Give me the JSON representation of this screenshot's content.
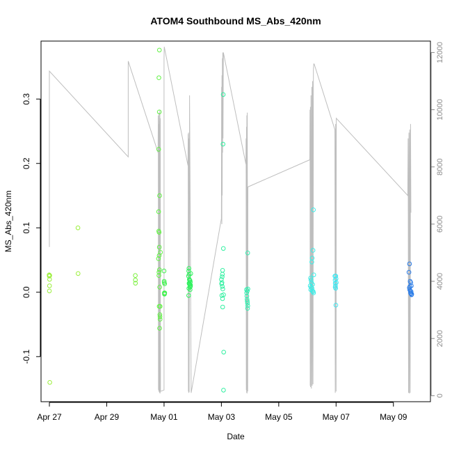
{
  "chart_data": {
    "type": "scatter",
    "title": "ATOM4 Southbound MS_Abs_420nm",
    "xlabel": "Date",
    "ylabel": "MS_Abs_420nm",
    "xlim": [
      "2016-04-26T17:00",
      "2016-05-10T07:00"
    ],
    "ylim": [
      -0.17,
      0.39
    ],
    "y2lim": [
      -210,
      12400
    ],
    "x_ticks": [
      {
        "date": "2016-04-27",
        "label": "Apr 27"
      },
      {
        "date": "2016-04-29",
        "label": "Apr 29"
      },
      {
        "date": "2016-05-01",
        "label": "May 01"
      },
      {
        "date": "2016-05-03",
        "label": "May 03"
      },
      {
        "date": "2016-05-05",
        "label": "May 05"
      },
      {
        "date": "2016-05-07",
        "label": "May 07"
      },
      {
        "date": "2016-05-09",
        "label": "May 09"
      }
    ],
    "y_ticks": [
      {
        "value": -0.1,
        "label": "-0.1"
      },
      {
        "value": 0.0,
        "label": "0.0"
      },
      {
        "value": 0.1,
        "label": "0.1"
      },
      {
        "value": 0.2,
        "label": "0.2"
      },
      {
        "value": 0.3,
        "label": "0.3"
      }
    ],
    "y2_ticks": [
      {
        "value": 0,
        "label": "0"
      },
      {
        "value": 2000,
        "label": "2000"
      },
      {
        "value": 4000,
        "label": "4000"
      },
      {
        "value": 6000,
        "label": "6000"
      },
      {
        "value": 8000,
        "label": "8000"
      },
      {
        "value": 10000,
        "label": "10000"
      },
      {
        "value": 12000,
        "label": "12000"
      }
    ],
    "grid": false,
    "legend": "none",
    "line_color": "#bebebe",
    "series": [
      {
        "color": "#9aef39",
        "points": [
          [
            "2016-04-26T23:50",
            0.027
          ],
          [
            "2016-04-26T23:55",
            0.025
          ],
          [
            "2016-04-27T00:00",
            0.002
          ],
          [
            "2016-04-27T00:05",
            0.01
          ],
          [
            "2016-04-27T00:10",
            0.02
          ],
          [
            "2016-04-27T00:15",
            0.026
          ],
          [
            "2016-04-27T00:20",
            -0.14
          ],
          [
            "2016-04-27T23:55",
            0.1
          ],
          [
            "2016-04-28T00:00",
            0.029
          ]
        ]
      },
      {
        "color": "#7df040",
        "points": [
          [
            "2016-04-29T23:55",
            0.026
          ],
          [
            "2016-04-30T00:00",
            0.019
          ],
          [
            "2016-04-30T00:05",
            0.014
          ]
        ]
      },
      {
        "color": "#62f245",
        "points": [
          [
            "2016-04-30T19:40",
            0.333
          ],
          [
            "2016-04-30T20:05",
            0.376
          ],
          [
            "2016-04-30T19:30",
            0.222
          ],
          [
            "2016-04-30T20:00",
            0.28
          ],
          [
            "2016-04-30T20:15",
            0.15
          ],
          [
            "2016-04-30T19:25",
            0.125
          ],
          [
            "2016-04-30T19:35",
            0.095
          ],
          [
            "2016-04-30T19:50",
            0.093
          ],
          [
            "2016-04-30T20:00",
            0.07
          ],
          [
            "2016-04-30T21:00",
            0.062
          ],
          [
            "2016-04-30T19:20",
            0.052
          ],
          [
            "2016-04-30T19:55",
            0.057
          ],
          [
            "2016-04-30T19:45",
            0.031
          ],
          [
            "2016-04-30T20:10",
            0.035
          ],
          [
            "2016-04-30T19:40",
            0.026
          ],
          [
            "2016-04-30T20:20",
            0.008
          ],
          [
            "2016-04-30T19:55",
            -0.022
          ],
          [
            "2016-04-30T20:45",
            -0.022
          ],
          [
            "2016-04-30T20:30",
            -0.035
          ],
          [
            "2016-04-30T20:35",
            -0.038
          ],
          [
            "2016-04-30T20:40",
            -0.042
          ],
          [
            "2016-04-30T20:15",
            -0.056
          ]
        ]
      },
      {
        "color": "#3ff24d",
        "points": [
          [
            "2016-05-01T00:00",
            0.033
          ],
          [
            "2016-05-01T00:05",
            0.017
          ],
          [
            "2016-05-01T00:10",
            0.015
          ],
          [
            "2016-05-01T00:15",
            -0.001
          ],
          [
            "2016-05-01T00:20",
            -0.003
          ],
          [
            "2016-05-01T00:25",
            -0.002
          ],
          [
            "2016-05-01T00:30",
            0.013
          ],
          [
            "2016-05-01T00:35",
            -0.001
          ]
        ]
      },
      {
        "color": "#2df25c",
        "points": [
          [
            "2016-05-01T20:30",
            0.025
          ],
          [
            "2016-05-01T20:40",
            0.033
          ],
          [
            "2016-05-01T20:50",
            0.037
          ],
          [
            "2016-05-01T21:00",
            0.028
          ],
          [
            "2016-05-01T21:10",
            0.02
          ],
          [
            "2016-05-01T21:20",
            0.019
          ],
          [
            "2016-05-01T21:30",
            0.012
          ],
          [
            "2016-05-01T21:40",
            0.008
          ],
          [
            "2016-05-01T21:50",
            0.004
          ],
          [
            "2016-05-01T22:00",
            0.016
          ],
          [
            "2016-05-01T22:10",
            0.011
          ],
          [
            "2016-05-01T22:20",
            0.029
          ],
          [
            "2016-05-01T20:35",
            -0.005
          ],
          [
            "2016-05-01T20:45",
            0.006
          ],
          [
            "2016-05-01T21:05",
            0.013
          ],
          [
            "2016-05-01T21:45",
            0.018
          ],
          [
            "2016-05-01T22:05",
            0.009
          ],
          [
            "2016-05-01T20:55",
            0.014
          ]
        ]
      },
      {
        "color": "#2ff0a0",
        "points": [
          [
            "2016-05-03T00:00",
            0.02
          ],
          [
            "2016-05-03T00:10",
            0.013
          ],
          [
            "2016-05-03T00:20",
            -0.005
          ],
          [
            "2016-05-03T01:30",
            0.307
          ],
          [
            "2016-05-03T01:20",
            0.23
          ],
          [
            "2016-05-03T01:40",
            0.068
          ],
          [
            "2016-05-03T01:00",
            0.034
          ],
          [
            "2016-05-03T00:50",
            0.028
          ],
          [
            "2016-05-03T00:40",
            0.024
          ],
          [
            "2016-05-03T00:30",
            0.015
          ],
          [
            "2016-05-03T01:10",
            0.005
          ],
          [
            "2016-05-03T01:50",
            -0.004
          ],
          [
            "2016-05-03T00:55",
            -0.01
          ],
          [
            "2016-05-03T01:05",
            -0.023
          ],
          [
            "2016-05-03T01:55",
            -0.093
          ],
          [
            "2016-05-03T01:45",
            -0.152
          ],
          [
            "2016-05-03T00:45",
            0.009
          ]
        ]
      },
      {
        "color": "#35efb1",
        "points": [
          [
            "2016-05-03T22:00",
            0.061
          ],
          [
            "2016-05-03T21:00",
            0.004
          ],
          [
            "2016-05-03T21:10",
            -0.001
          ],
          [
            "2016-05-03T21:20",
            -0.006
          ],
          [
            "2016-05-03T21:30",
            -0.011
          ],
          [
            "2016-05-03T21:40",
            -0.014
          ],
          [
            "2016-05-03T21:50",
            -0.017
          ],
          [
            "2016-05-03T22:05",
            -0.021
          ],
          [
            "2016-05-03T21:55",
            -0.025
          ],
          [
            "2016-05-03T21:45",
            0.002
          ],
          [
            "2016-05-03T22:10",
            0.005
          ]
        ]
      },
      {
        "color": "#39eee8",
        "points": [
          [
            "2016-05-06T05:00",
            0.128
          ],
          [
            "2016-05-06T04:40",
            0.065
          ],
          [
            "2016-05-06T04:00",
            0.053
          ],
          [
            "2016-05-06T03:40",
            0.047
          ],
          [
            "2016-05-06T05:20",
            0.027
          ],
          [
            "2016-05-06T02:40",
            0.022
          ],
          [
            "2016-05-06T03:00",
            0.019
          ],
          [
            "2016-05-06T03:20",
            0.015
          ],
          [
            "2016-05-06T04:20",
            0.012
          ],
          [
            "2016-05-06T02:20",
            0.01
          ],
          [
            "2016-05-06T03:50",
            0.006
          ],
          [
            "2016-05-06T02:50",
            0.004
          ],
          [
            "2016-05-06T04:50",
            0.001
          ],
          [
            "2016-05-06T05:10",
            -0.001
          ],
          [
            "2016-05-06T03:10",
            0.008
          ],
          [
            "2016-05-06T04:10",
            0.002
          ]
        ]
      },
      {
        "color": "#40e6f0",
        "points": [
          [
            "2016-05-06T23:00",
            0.025
          ],
          [
            "2016-05-06T23:10",
            0.019
          ],
          [
            "2016-05-06T23:20",
            0.014
          ],
          [
            "2016-05-06T23:30",
            0.01
          ],
          [
            "2016-05-06T23:40",
            0.006
          ],
          [
            "2016-05-06T23:50",
            -0.02
          ],
          [
            "2016-05-07T00:00",
            0.021
          ],
          [
            "2016-05-07T00:10",
            0.015
          ],
          [
            "2016-05-06T23:45",
            0.025
          ],
          [
            "2016-05-06T23:15",
            0.008
          ]
        ]
      },
      {
        "color": "#2c7de8",
        "points": [
          [
            "2016-05-09T13:00",
            0.031
          ],
          [
            "2016-05-09T13:30",
            0.044
          ],
          [
            "2016-05-09T14:00",
            0.017
          ],
          [
            "2016-05-09T14:30",
            0.015
          ],
          [
            "2016-05-09T15:00",
            0.01
          ],
          [
            "2016-05-09T13:20",
            0.007
          ],
          [
            "2016-05-09T13:40",
            0.004
          ],
          [
            "2016-05-09T14:10",
            0.002
          ],
          [
            "2016-05-09T14:40",
            -0.002
          ],
          [
            "2016-05-09T15:10",
            -0.004
          ],
          [
            "2016-05-09T13:50",
            0.009
          ],
          [
            "2016-05-09T14:20",
            -0.001
          ],
          [
            "2016-05-09T14:50",
            0.001
          ],
          [
            "2016-05-09T15:20",
            -0.003
          ]
        ]
      }
    ],
    "secondary_line": {
      "axis": "right",
      "color": "#bebebe",
      "points": [
        [
          "2016-04-27T00:00",
          5200
        ],
        [
          "2016-04-27T00:00",
          11350
        ],
        [
          "2016-04-29T18:00",
          8350
        ],
        [
          "2016-04-29T18:00",
          11700
        ],
        [
          "2016-04-30T19:00",
          8500
        ],
        [
          "2016-04-30T19:10",
          9800
        ],
        [
          "2016-04-30T19:20",
          200
        ],
        [
          "2016-04-30T19:30",
          9500
        ],
        [
          "2016-04-30T19:40",
          150
        ],
        [
          "2016-04-30T19:50",
          9900
        ],
        [
          "2016-04-30T20:00",
          120
        ],
        [
          "2016-04-30T20:10",
          9600
        ],
        [
          "2016-04-30T20:20",
          100
        ],
        [
          "2016-04-30T20:30",
          10000
        ],
        [
          "2016-04-30T20:40",
          80
        ],
        [
          "2016-04-30T20:50",
          9700
        ],
        [
          "2016-04-30T21:00",
          150
        ],
        [
          "2016-05-01T00:00",
          200
        ],
        [
          "2016-05-01T00:00",
          11800
        ],
        [
          "2016-05-01T00:10",
          12200
        ],
        [
          "2016-05-01T20:00",
          8050
        ],
        [
          "2016-05-01T20:10",
          9150
        ],
        [
          "2016-05-01T20:20",
          150
        ],
        [
          "2016-05-01T20:30",
          9200
        ],
        [
          "2016-05-01T20:40",
          100
        ],
        [
          "2016-05-01T20:50",
          9000
        ],
        [
          "2016-05-01T21:00",
          120
        ],
        [
          "2016-05-01T21:20",
          10500
        ],
        [
          "2016-05-01T22:40",
          100
        ],
        [
          "2016-05-03T00:00",
          6200
        ],
        [
          "2016-05-03T00:10",
          10800
        ],
        [
          "2016-05-03T00:20",
          6000
        ],
        [
          "2016-05-03T00:30",
          11200
        ],
        [
          "2016-05-03T00:40",
          7000
        ],
        [
          "2016-05-03T00:50",
          11800
        ],
        [
          "2016-05-03T01:00",
          8500
        ],
        [
          "2016-05-03T01:10",
          12000
        ],
        [
          "2016-05-03T01:20",
          9000
        ],
        [
          "2016-05-03T01:40",
          12000
        ],
        [
          "2016-05-03T20:30",
          8100
        ],
        [
          "2016-05-03T20:40",
          9000
        ],
        [
          "2016-05-03T20:50",
          200
        ],
        [
          "2016-05-03T21:00",
          9400
        ],
        [
          "2016-05-03T21:10",
          100
        ],
        [
          "2016-05-03T21:20",
          9800
        ],
        [
          "2016-05-03T21:30",
          80
        ],
        [
          "2016-05-03T21:40",
          9900
        ],
        [
          "2016-05-03T22:00",
          150
        ],
        [
          "2016-05-03T22:10",
          7300
        ],
        [
          "2016-05-06T02:00",
          8250
        ],
        [
          "2016-05-06T02:10",
          10000
        ],
        [
          "2016-05-06T02:20",
          350
        ],
        [
          "2016-05-06T02:30",
          10100
        ],
        [
          "2016-05-06T02:40",
          300
        ],
        [
          "2016-05-06T03:00",
          10500
        ],
        [
          "2016-05-06T03:20",
          250
        ],
        [
          "2016-05-06T03:40",
          10800
        ],
        [
          "2016-05-06T04:00",
          350
        ],
        [
          "2016-05-06T04:20",
          11000
        ],
        [
          "2016-05-06T04:40",
          400
        ],
        [
          "2016-05-06T05:00",
          11400
        ],
        [
          "2016-05-06T05:20",
          11600
        ],
        [
          "2016-05-06T05:40",
          11600
        ],
        [
          "2016-05-06T23:00",
          9300
        ],
        [
          "2016-05-06T23:20",
          100
        ],
        [
          "2016-05-06T23:40",
          9500
        ],
        [
          "2016-05-07T00:00",
          150
        ],
        [
          "2016-05-07T00:10",
          9700
        ],
        [
          "2016-05-09T12:00",
          7000
        ],
        [
          "2016-05-09T12:20",
          9000
        ],
        [
          "2016-05-09T12:40",
          100
        ],
        [
          "2016-05-09T13:00",
          9200
        ],
        [
          "2016-05-09T13:20",
          80
        ],
        [
          "2016-05-09T13:40",
          9300
        ],
        [
          "2016-05-09T14:00",
          100
        ],
        [
          "2016-05-09T14:20",
          9500
        ],
        [
          "2016-05-09T14:40",
          6400
        ]
      ]
    }
  }
}
